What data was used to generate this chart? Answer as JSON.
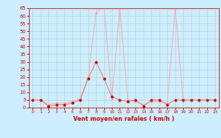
{
  "hours": [
    0,
    1,
    2,
    3,
    4,
    5,
    6,
    7,
    8,
    9,
    10,
    11,
    12,
    13,
    14,
    15,
    16,
    17,
    18,
    19,
    20,
    21,
    22,
    23
  ],
  "wind_avg": [
    5,
    5,
    1,
    2,
    2,
    3,
    5,
    19,
    30,
    19,
    7,
    5,
    4,
    5,
    1,
    5,
    5,
    2,
    5,
    5,
    5,
    5,
    5,
    5
  ],
  "wind_gust": [
    5,
    5,
    2,
    3,
    3,
    4,
    6,
    20,
    62,
    67,
    6,
    65,
    5,
    4,
    2,
    4,
    4,
    3,
    65,
    5,
    5,
    5,
    5,
    5
  ],
  "bg_color": "#cceeff",
  "grid_color": "#aacccc",
  "line_avg_color": "#ee7777",
  "line_gust_color": "#ffaaaa",
  "marker_avg_color": "#cc0000",
  "axis_label_color": "#cc0000",
  "tick_color": "#cc0000",
  "spine_color": "#cc3333",
  "xlabel": "Vent moyen/en rafales ( km/h )",
  "ylim": [
    0,
    65
  ],
  "xlim": [
    -0.5,
    23.5
  ],
  "yticks": [
    0,
    5,
    10,
    15,
    20,
    25,
    30,
    35,
    40,
    45,
    50,
    55,
    60,
    65
  ],
  "ytick_fontsize": 5,
  "xtick_fontsize": 4.5,
  "xlabel_fontsize": 6
}
